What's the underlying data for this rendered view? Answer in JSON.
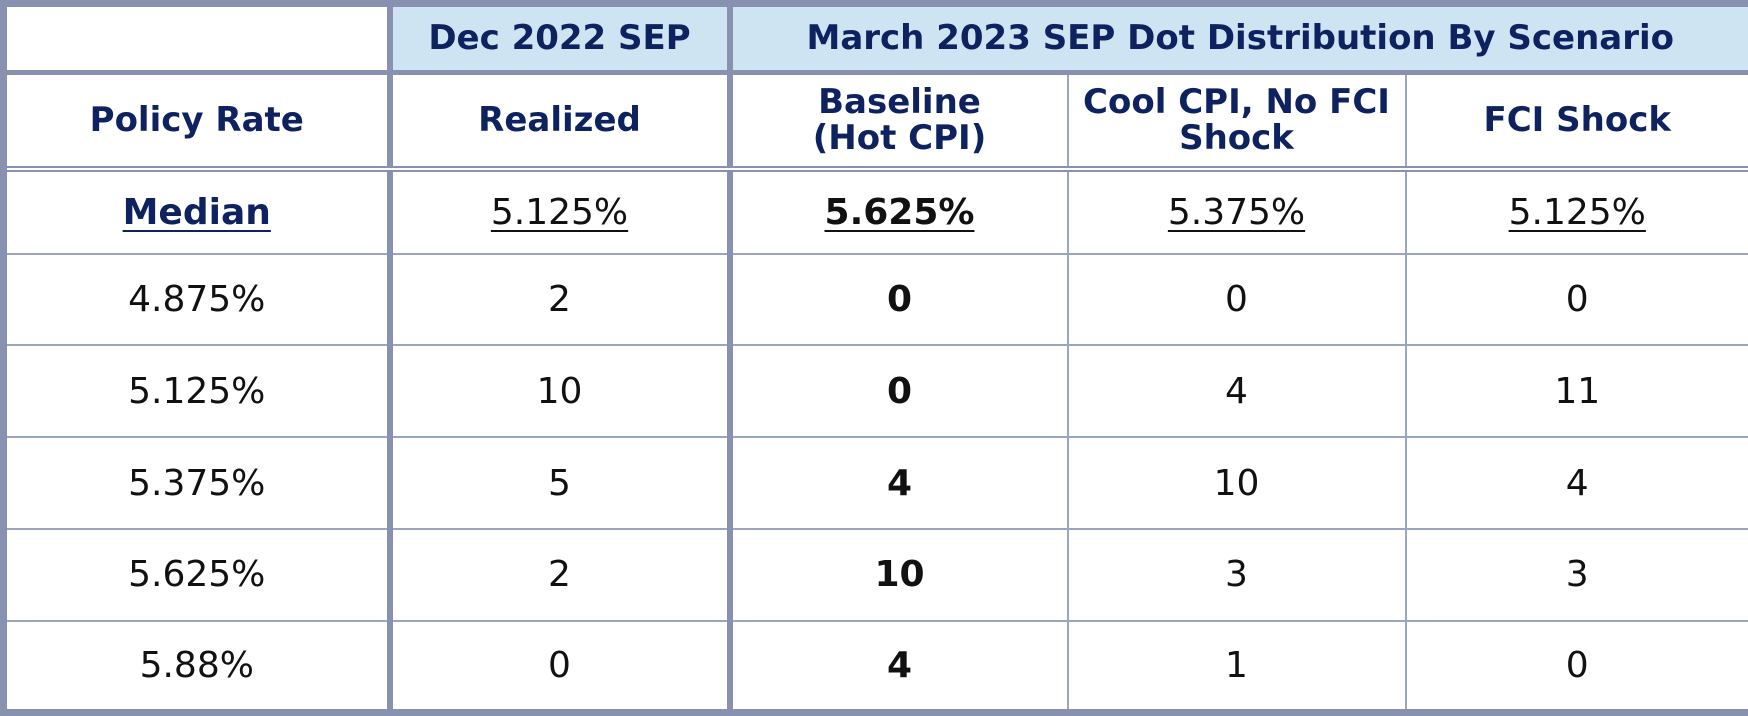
{
  "group_headers": {
    "dec": "Dec 2022 SEP",
    "march": "March 2023 SEP Dot Distribution By Scenario"
  },
  "column_headers": {
    "policy_rate": "Policy Rate",
    "realized": "Realized",
    "baseline_line1": "Baseline",
    "baseline_line2": "(Hot CPI)",
    "cool_line1": "Cool CPI, No FCI",
    "cool_line2": "Shock",
    "fci": "FCI Shock"
  },
  "median_row": {
    "label": "Median",
    "realized": "5.125%",
    "baseline": "5.625%",
    "cool": "5.375%",
    "fci": "5.125%"
  },
  "rows": [
    {
      "rate": "4.875%",
      "realized": "2",
      "baseline": "0",
      "cool": "0",
      "fci": "0"
    },
    {
      "rate": "5.125%",
      "realized": "10",
      "baseline": "0",
      "cool": "4",
      "fci": "11"
    },
    {
      "rate": "5.375%",
      "realized": "5",
      "baseline": "4",
      "cool": "10",
      "fci": "4"
    },
    {
      "rate": "5.625%",
      "realized": "2",
      "baseline": "10",
      "cool": "3",
      "fci": "3"
    },
    {
      "rate": "5.88%",
      "realized": "0",
      "baseline": "4",
      "cool": "1",
      "fci": "0"
    }
  ],
  "colors": {
    "header_blue": "#cfe4f2",
    "header_text": "#0f2260",
    "border": "#8892b0"
  }
}
